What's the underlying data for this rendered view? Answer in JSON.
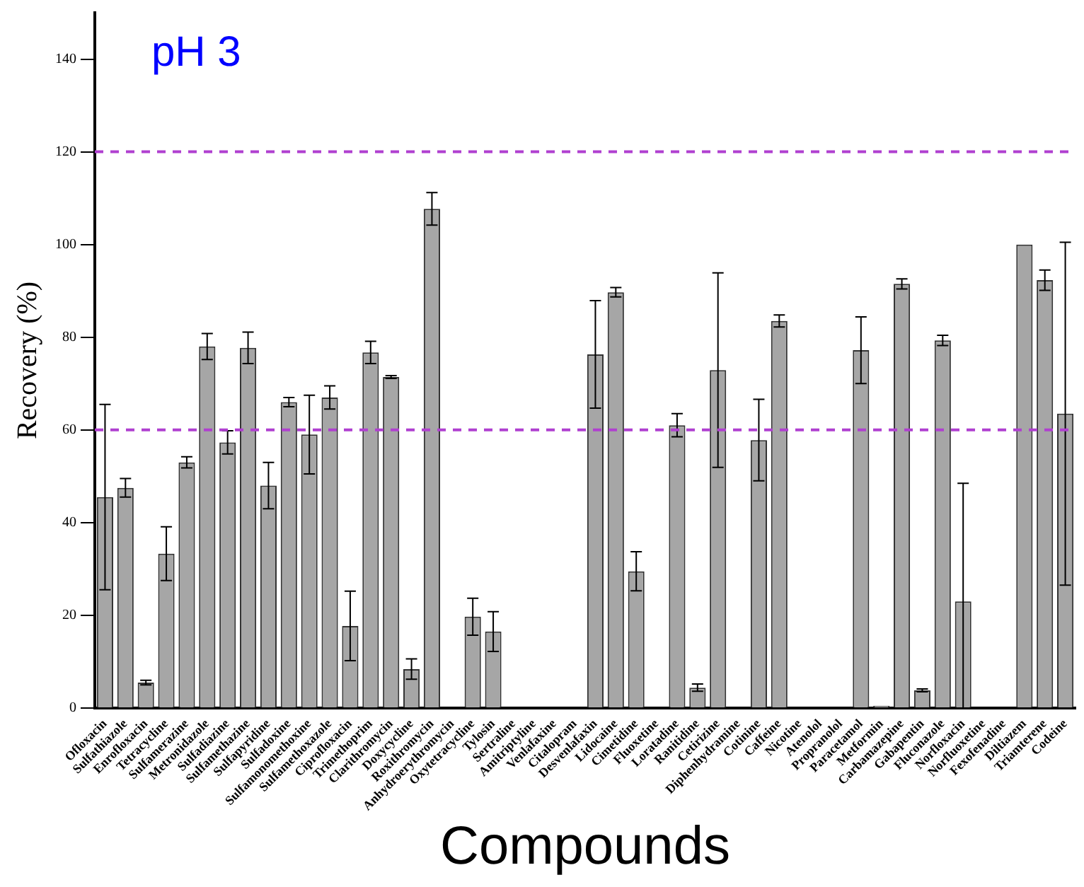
{
  "chart_data": {
    "type": "bar",
    "xlabel": "Compounds",
    "ylabel": "Recovery (%)",
    "annotations": [
      "pH 3"
    ],
    "categories": [
      "Ofloxacin",
      "Sulfathiazole",
      "Enrofloxacin",
      "Tetracycline",
      "Sulfamerazine",
      "Metronidazole",
      "Sulfadiazine",
      "Sulfamethazine",
      "Sulfapyridine",
      "Sulfadoxine",
      "Sulfamonomethoxine",
      "Sulfamethoxazole",
      "Ciprofloxacin",
      "Trimethoprim",
      "Clarithromycin",
      "Doxycycline",
      "Roxithromycin",
      "Anhydroerythromycin",
      "Oxytetracycline",
      "Tylosin",
      "Sertraline",
      "Amitriptyline",
      "Venlafaxine",
      "Citalopram",
      "Desvenlafaxin",
      "Lidocaine",
      "Cimetidine",
      "Fluoxetine",
      "Loratadine",
      "Ranitidine",
      "Cetirizine",
      "Diphenhydramine",
      "Cotinine",
      "Caffeine",
      "Nicotine",
      "Atenolol",
      "Propranolol",
      "Paracetamol",
      "Metformin",
      "Carbamazepine",
      "Gabapentin",
      "Fluconazole",
      "Norfloxacin",
      "Norfluoxetine",
      "Fexofenadine",
      "Diltiazem",
      "Triamterene",
      "Codeine"
    ],
    "values": [
      45.5,
      47.5,
      5.5,
      33.3,
      53,
      78,
      57.3,
      77.7,
      48,
      66,
      59,
      67,
      17.7,
      76.7,
      71.4,
      8.4,
      107.7,
      null,
      19.7,
      16.5,
      null,
      null,
      null,
      null,
      76.3,
      89.7,
      29.5,
      null,
      61,
      4.4,
      72.9,
      null,
      57.8,
      83.5,
      0,
      null,
      null,
      77.2,
      0.5,
      91.5,
      3.8,
      79.3,
      23,
      null,
      null,
      100,
      92.3,
      63.5
    ],
    "errors": [
      20,
      2,
      0.5,
      5.8,
      1.2,
      2.8,
      2.5,
      3.4,
      5,
      1,
      8.5,
      2.5,
      7.5,
      2.4,
      0.3,
      2.2,
      3.5,
      null,
      4,
      4.3,
      null,
      null,
      null,
      null,
      11.6,
      1,
      4.2,
      null,
      2.5,
      0.8,
      21,
      null,
      8.8,
      1.3,
      null,
      null,
      null,
      7.2,
      null,
      1.1,
      0.3,
      1.1,
      [
        0,
        48.5
      ],
      null,
      null,
      null,
      2.2,
      37
    ],
    "color": "#a6a6a6",
    "ylim": [
      0,
      150
    ],
    "yticks": [
      0,
      20,
      40,
      60,
      80,
      100,
      120,
      140
    ],
    "ref_lines": [
      {
        "axis": "y",
        "value": 60,
        "color": "#b040d0",
        "line_style": "dashed"
      },
      {
        "axis": "y",
        "value": 120,
        "color": "#b040d0",
        "line_style": "dashed"
      }
    ],
    "grid": false,
    "legend": false
  }
}
